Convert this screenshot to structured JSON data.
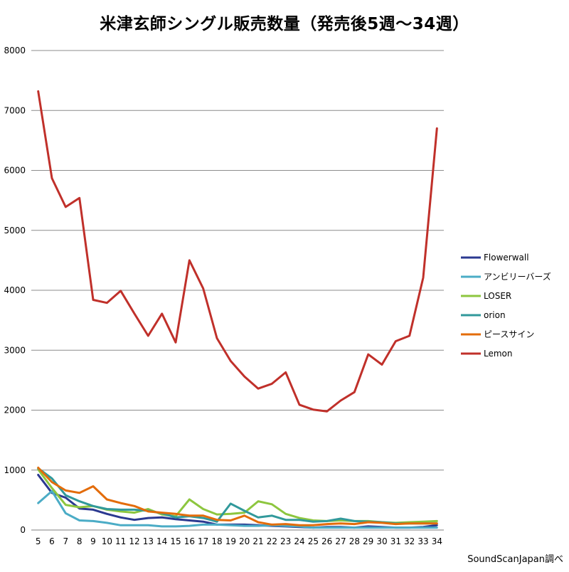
{
  "chart_data": {
    "type": "line",
    "title": "米津玄師シングル販売数量（発売後5週～34週）",
    "xlabel": "",
    "ylabel": "",
    "x": [
      5,
      6,
      7,
      8,
      9,
      10,
      11,
      12,
      13,
      14,
      15,
      16,
      17,
      18,
      19,
      20,
      21,
      22,
      23,
      24,
      25,
      26,
      27,
      28,
      29,
      30,
      31,
      32,
      33,
      34
    ],
    "ylim": [
      0,
      8000
    ],
    "yticks": [
      0,
      1000,
      2000,
      3000,
      4000,
      5000,
      6000,
      7000,
      8000
    ],
    "grid": true,
    "legend_position": "right",
    "series": [
      {
        "name": "Flowerwall",
        "color": "#2B3990",
        "values": [
          920,
          620,
          540,
          360,
          340,
          270,
          210,
          170,
          200,
          210,
          180,
          160,
          140,
          90,
          90,
          90,
          80,
          70,
          60,
          50,
          40,
          50,
          50,
          40,
          60,
          50,
          40,
          40,
          50,
          80
        ]
      },
      {
        "name": "アンビリーバーズ",
        "color": "#4BACC6",
        "values": [
          450,
          650,
          280,
          160,
          150,
          120,
          80,
          80,
          80,
          60,
          60,
          70,
          90,
          90,
          80,
          70,
          70,
          80,
          70,
          60,
          40,
          40,
          40,
          40,
          40,
          40,
          40,
          40,
          40,
          40
        ]
      },
      {
        "name": "LOSER",
        "color": "#8DC63F",
        "values": [
          1010,
          700,
          420,
          380,
          400,
          340,
          310,
          290,
          350,
          260,
          230,
          510,
          350,
          260,
          270,
          290,
          480,
          430,
          270,
          200,
          160,
          150,
          160,
          150,
          150,
          130,
          120,
          130,
          140,
          150
        ]
      },
      {
        "name": "orion",
        "color": "#31999B",
        "values": [
          1030,
          860,
          580,
          480,
          400,
          350,
          340,
          340,
          320,
          280,
          210,
          230,
          200,
          140,
          440,
          320,
          210,
          240,
          170,
          170,
          140,
          150,
          190,
          150,
          140,
          130,
          110,
          110,
          110,
          110
        ]
      },
      {
        "name": "ピースサイン",
        "color": "#E36C0A",
        "values": [
          1040,
          800,
          660,
          620,
          730,
          510,
          450,
          400,
          310,
          290,
          270,
          240,
          240,
          170,
          160,
          240,
          130,
          90,
          100,
          80,
          80,
          100,
          110,
          100,
          130,
          120,
          100,
          110,
          110,
          110
        ]
      },
      {
        "name": "Lemon",
        "color": "#C0302A",
        "values": [
          7320,
          5870,
          5390,
          5540,
          3840,
          3790,
          3990,
          3610,
          3240,
          3610,
          3130,
          4500,
          4030,
          3200,
          2820,
          2560,
          2360,
          2440,
          2630,
          2090,
          2010,
          1980,
          2160,
          2300,
          2930,
          2760,
          3150,
          3240,
          4210,
          6700
        ]
      }
    ],
    "source": "SoundScanJapan調べ"
  }
}
